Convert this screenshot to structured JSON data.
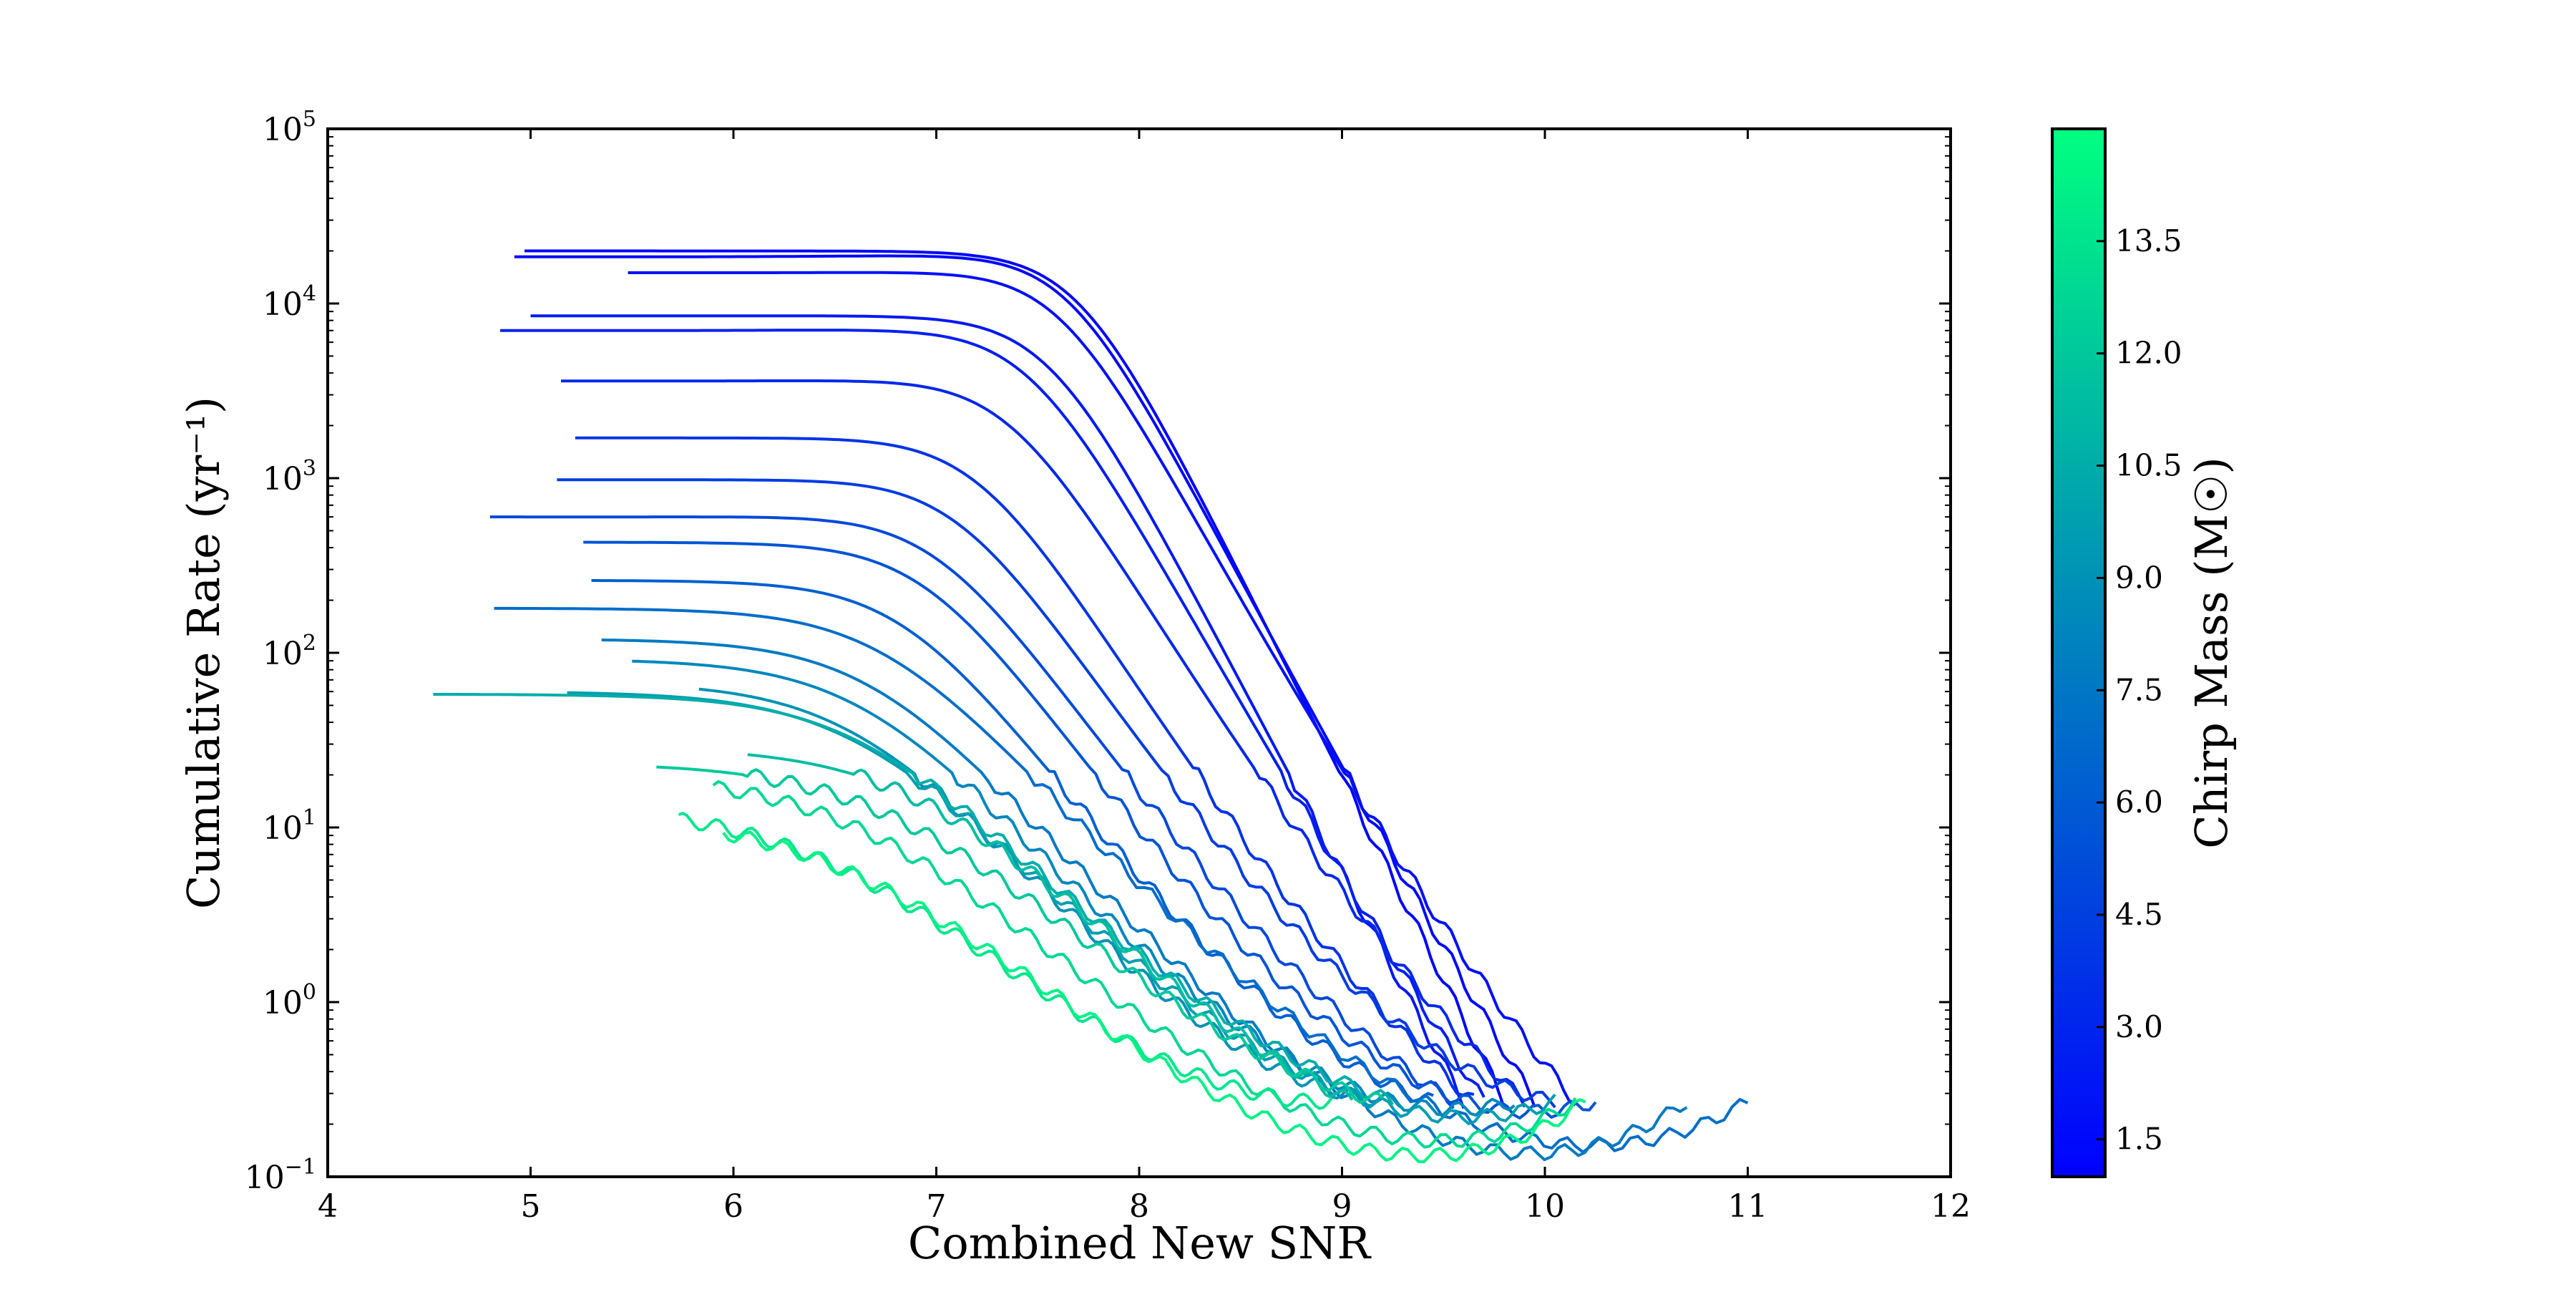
{
  "chart_data": {
    "type": "line",
    "title": "",
    "xlabel": "Combined New SNR",
    "ylabel": "Cumulative Rate (yr⁻¹)",
    "xlim": [
      4,
      12
    ],
    "ylim": [
      0.1,
      100000
    ],
    "yscale": "log",
    "grid": false,
    "x_ticks": [
      4,
      5,
      6,
      7,
      8,
      9,
      10,
      11,
      12
    ],
    "y_ticks": [
      {
        "value": 0.1,
        "base": "10",
        "exp": "−1"
      },
      {
        "value": 1,
        "base": "10",
        "exp": "0"
      },
      {
        "value": 10,
        "base": "10",
        "exp": "1"
      },
      {
        "value": 100,
        "base": "10",
        "exp": "2"
      },
      {
        "value": 1000,
        "base": "10",
        "exp": "3"
      },
      {
        "value": 10000,
        "base": "10",
        "exp": "4"
      },
      {
        "value": 100000,
        "base": "10",
        "exp": "5"
      }
    ],
    "colorbar": {
      "label": "Chirp Mass (M☉)",
      "range": [
        1.0,
        15.0
      ],
      "ticks": [
        "1.5",
        "3.0",
        "4.5",
        "6.0",
        "7.5",
        "9.0",
        "10.5",
        "12.0",
        "13.5"
      ],
      "colormap": "winter",
      "color_low": "#0000ff",
      "color_high": "#00ff80"
    },
    "series": [
      {
        "chirp_mass": 1.2,
        "x0": 4.97,
        "r0": 20000,
        "knee": 7.7,
        "slope": 1.45,
        "x_end": 9.8,
        "r_end": 0.27
      },
      {
        "chirp_mass": 1.5,
        "x0": 4.92,
        "r0": 18500,
        "knee": 7.65,
        "slope": 1.45,
        "x_end": 9.95,
        "r_end": 0.27
      },
      {
        "chirp_mass": 1.9,
        "x0": 5.48,
        "r0": 15000,
        "knee": 7.6,
        "slope": 1.42,
        "x_end": 10.15,
        "r_end": 0.27
      },
      {
        "chirp_mass": 2.3,
        "x0": 5.0,
        "r0": 8500,
        "knee": 7.55,
        "slope": 1.4,
        "x_end": 9.6,
        "r_end": 0.27
      },
      {
        "chirp_mass": 2.7,
        "x0": 4.85,
        "r0": 7000,
        "knee": 7.45,
        "slope": 1.35,
        "x_end": 9.7,
        "r_end": 0.27
      },
      {
        "chirp_mass": 3.2,
        "x0": 5.15,
        "r0": 3600,
        "knee": 7.35,
        "slope": 1.3,
        "x_end": 9.9,
        "r_end": 0.27
      },
      {
        "chirp_mass": 3.8,
        "x0": 5.22,
        "r0": 1700,
        "knee": 7.2,
        "slope": 1.25,
        "x_end": 9.65,
        "r_end": 0.27
      },
      {
        "chirp_mass": 4.3,
        "x0": 5.13,
        "r0": 980,
        "knee": 7.1,
        "slope": 1.2,
        "x_end": 10.05,
        "r_end": 0.27
      },
      {
        "chirp_mass": 5.0,
        "x0": 4.8,
        "r0": 600,
        "knee": 7.0,
        "slope": 1.15,
        "x_end": 9.55,
        "r_end": 0.27
      },
      {
        "chirp_mass": 5.6,
        "x0": 5.26,
        "r0": 430,
        "knee": 6.95,
        "slope": 1.12,
        "x_end": 10.25,
        "r_end": 0.27
      },
      {
        "chirp_mass": 6.2,
        "x0": 5.3,
        "r0": 260,
        "knee": 6.85,
        "slope": 1.05,
        "x_end": 9.45,
        "r_end": 0.27
      },
      {
        "chirp_mass": 7.0,
        "x0": 4.82,
        "r0": 180,
        "knee": 6.75,
        "slope": 0.9,
        "x_end": 11.0,
        "r_end": 0.27
      },
      {
        "chirp_mass": 7.7,
        "x0": 5.35,
        "r0": 120,
        "knee": 6.7,
        "slope": 0.88,
        "x_end": 10.7,
        "r_end": 0.27
      },
      {
        "chirp_mass": 8.4,
        "x0": 5.5,
        "r0": 92,
        "knee": 6.65,
        "slope": 0.85,
        "x_end": 9.85,
        "r_end": 0.27
      },
      {
        "chirp_mass": 9.0,
        "x0": 5.83,
        "r0": 68,
        "knee": 6.6,
        "slope": 0.82,
        "x_end": 9.3,
        "r_end": 0.27
      },
      {
        "chirp_mass": 9.7,
        "x0": 5.18,
        "r0": 60,
        "knee": 6.6,
        "slope": 0.8,
        "x_end": 10.05,
        "r_end": 0.27
      },
      {
        "chirp_mass": 10.5,
        "x0": 4.52,
        "r0": 58,
        "knee": 6.6,
        "slope": 0.8,
        "x_end": 9.25,
        "r_end": 0.27
      },
      {
        "chirp_mass": 11.3,
        "x0": 6.07,
        "r0": 29,
        "knee": 6.9,
        "slope": 0.72,
        "x_end": 9.05,
        "r_end": 0.27
      },
      {
        "chirp_mass": 12.0,
        "x0": 5.62,
        "r0": 23.5,
        "knee": 6.75,
        "slope": 0.68,
        "x_end": 9.2,
        "r_end": 0.27
      },
      {
        "chirp_mass": 12.8,
        "x0": 5.9,
        "r0": 20,
        "knee": 6.6,
        "slope": 0.66,
        "x_end": 10.15,
        "r_end": 0.27
      },
      {
        "chirp_mass": 13.6,
        "x0": 5.73,
        "r0": 13.5,
        "knee": 6.4,
        "slope": 0.62,
        "x_end": 8.95,
        "r_end": 0.27
      },
      {
        "chirp_mass": 14.3,
        "x0": 5.95,
        "r0": 12,
        "knee": 6.5,
        "slope": 0.6,
        "x_end": 10.2,
        "r_end": 0.27
      }
    ]
  }
}
